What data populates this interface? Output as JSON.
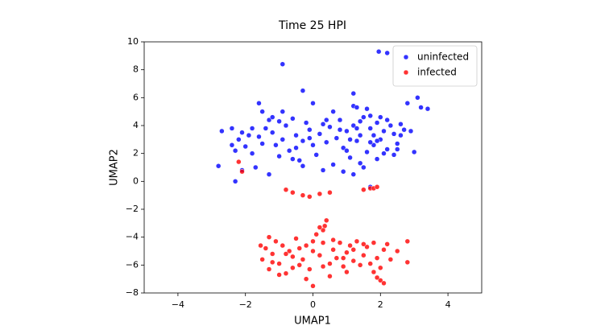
{
  "chart_data": {
    "type": "scatter",
    "title": "Time 25 HPI",
    "x_label": "UMAP1",
    "y_label": "UMAP2",
    "xlim": [
      -5,
      5
    ],
    "ylim": [
      -8,
      10
    ],
    "xticks": [
      {
        "value": -4,
        "label": "−4"
      },
      {
        "value": -2,
        "label": "−2"
      },
      0,
      2,
      4
    ],
    "yticks": [
      {
        "value": -8,
        "label": "−8"
      },
      {
        "value": -6,
        "label": "−6"
      },
      {
        "value": -4,
        "label": "−4"
      },
      {
        "value": -2,
        "label": "−2"
      },
      0,
      2,
      4,
      6,
      8,
      10
    ],
    "legend": "upper right",
    "series": [
      {
        "name": "uninfected",
        "color": "#0000ff",
        "x": [
          -2.7,
          -2.4,
          -2.2,
          -2.0,
          -2.3,
          -1.9,
          -1.8,
          -1.7,
          -1.5,
          -1.4,
          -1.3,
          -1.2,
          -1.1,
          -1.0,
          -0.9,
          -0.8,
          -0.7,
          -0.6,
          -0.5,
          -0.4,
          -0.3,
          -0.2,
          -0.1,
          0.0,
          0.1,
          0.2,
          0.3,
          0.4,
          0.5,
          0.6,
          0.7,
          0.8,
          0.9,
          1.0,
          1.1,
          1.2,
          1.3,
          1.4,
          1.5,
          1.6,
          1.7,
          1.8,
          1.9,
          2.0,
          2.1,
          2.2,
          2.3,
          2.4,
          2.5,
          2.6,
          2.7,
          2.5,
          2.2,
          1.9,
          1.6,
          1.4,
          1.2,
          0.9,
          0.6,
          0.3,
          0.0,
          -0.3,
          -0.6,
          -0.9,
          -1.2,
          -1.5,
          -1.8,
          -2.1,
          -2.4,
          -1.3,
          1.0,
          1.3,
          1.7,
          2.0,
          2.4,
          1.5,
          1.8,
          2.1,
          0.8,
          0.4,
          -0.1,
          -0.5,
          -1.0,
          -1.6,
          1.1,
          1.4,
          1.9,
          2.6,
          2.9,
          3.0,
          1.7,
          1.3,
          1.95,
          2.2,
          -0.9,
          -0.3,
          3.1,
          3.2,
          3.4,
          -2.8,
          -2.3,
          -2.1,
          -1.6,
          1.2,
          2.8,
          1.7,
          1.2
        ],
        "values": [
          3.6,
          3.8,
          3.0,
          2.5,
          2.2,
          3.3,
          2.0,
          1.0,
          2.7,
          3.8,
          4.4,
          3.5,
          2.6,
          1.8,
          3.0,
          4.0,
          2.2,
          4.5,
          3.3,
          1.5,
          2.9,
          4.2,
          3.7,
          2.6,
          1.9,
          3.4,
          4.1,
          2.8,
          3.9,
          1.2,
          3.1,
          4.4,
          2.4,
          3.6,
          1.7,
          4.0,
          2.9,
          3.3,
          4.6,
          2.1,
          3.8,
          2.6,
          4.2,
          3.0,
          3.6,
          2.3,
          4.0,
          3.4,
          2.7,
          4.1,
          3.7,
          2.3,
          4.4,
          1.6,
          5.2,
          1.3,
          5.4,
          0.7,
          5.0,
          0.8,
          5.6,
          1.1,
          1.6,
          5.0,
          4.6,
          5.0,
          3.8,
          3.5,
          2.6,
          0.5,
          2.2,
          3.8,
          2.8,
          4.6,
          1.9,
          1.0,
          3.3,
          2.0,
          3.7,
          4.4,
          3.1,
          2.4,
          4.3,
          3.2,
          3.0,
          4.3,
          2.9,
          3.3,
          3.6,
          2.1,
          4.7,
          5.3,
          9.3,
          9.2,
          8.4,
          6.5,
          6.0,
          5.3,
          5.2,
          1.1,
          0.0,
          0.8,
          5.6,
          6.3,
          5.6,
          -0.4,
          0.5
        ]
      },
      {
        "name": "infected",
        "color": "#ff0000",
        "x": [
          -1.5,
          -1.4,
          -1.3,
          -1.2,
          -1.1,
          -1.0,
          -0.9,
          -0.8,
          -0.7,
          -0.6,
          -0.5,
          -0.4,
          -0.3,
          -0.2,
          -0.1,
          0.0,
          0.1,
          0.2,
          0.3,
          0.35,
          0.4,
          0.3,
          0.2,
          0.5,
          0.6,
          0.7,
          0.8,
          0.9,
          1.0,
          1.1,
          1.2,
          1.3,
          1.4,
          1.5,
          1.6,
          1.7,
          1.8,
          1.9,
          2.0,
          2.1,
          2.3,
          2.5,
          -1.55,
          -1.3,
          -0.8,
          -0.2,
          0.5,
          1.0,
          1.8,
          -1.0,
          0.0,
          0.6,
          1.2,
          -0.4,
          0.9,
          1.5,
          -0.6,
          0.3,
          -1.2,
          2.2,
          -2.2,
          -2.1,
          -0.8,
          -0.6,
          -0.3,
          -0.1,
          0.2,
          0.5,
          1.5,
          1.7,
          1.8,
          1.9,
          0.0,
          2.0,
          2.1,
          1.9,
          2.8,
          2.8
        ],
        "values": [
          -5.6,
          -4.8,
          -6.3,
          -5.2,
          -4.3,
          -5.9,
          -4.6,
          -6.6,
          -5.0,
          -5.4,
          -4.1,
          -6.0,
          -5.6,
          -4.6,
          -6.3,
          -5.0,
          -3.8,
          -5.3,
          -4.4,
          -3.2,
          -2.8,
          -3.5,
          -3.3,
          -5.9,
          -4.9,
          -5.5,
          -4.4,
          -6.1,
          -5.1,
          -4.6,
          -5.7,
          -4.3,
          -6.0,
          -5.3,
          -4.7,
          -5.9,
          -4.4,
          -5.5,
          -6.2,
          -4.9,
          -5.6,
          -5.0,
          -4.6,
          -4.0,
          -5.2,
          -7.0,
          -6.8,
          -6.5,
          -6.5,
          -6.7,
          -4.3,
          -4.2,
          -4.9,
          -4.8,
          -5.5,
          -4.5,
          -6.2,
          -6.1,
          -5.8,
          -4.5,
          1.4,
          0.7,
          -0.6,
          -0.8,
          -1.0,
          -1.1,
          -0.9,
          -0.8,
          -0.6,
          -0.5,
          -0.5,
          -0.4,
          -7.5,
          -7.1,
          -7.3,
          -6.9,
          -4.3,
          -5.8
        ]
      }
    ]
  }
}
